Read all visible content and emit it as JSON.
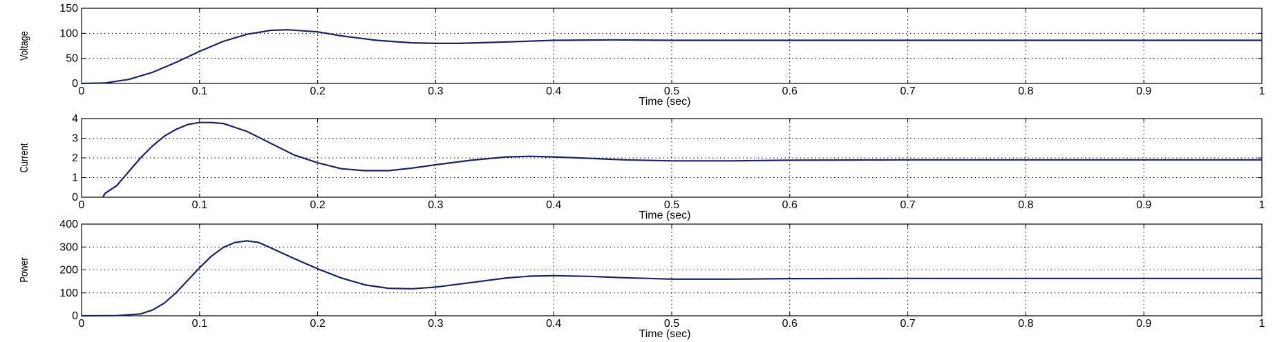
{
  "chart_data": [
    {
      "type": "line",
      "title": "",
      "xlabel": "Time (sec)",
      "ylabel": "Voltage",
      "xlim": [
        0,
        1
      ],
      "ylim": [
        0,
        150
      ],
      "xticks": [
        "0",
        "0.1",
        "0.2",
        "0.3",
        "0.4",
        "0.5",
        "0.6",
        "0.7",
        "0.8",
        "0.9",
        "1"
      ],
      "yticks": [
        "0",
        "50",
        "100",
        "150"
      ],
      "grid": true,
      "series": [
        {
          "color": "#1a1f6e",
          "x": [
            0,
            0.02,
            0.04,
            0.06,
            0.08,
            0.1,
            0.12,
            0.14,
            0.16,
            0.175,
            0.2,
            0.22,
            0.25,
            0.28,
            0.3,
            0.32,
            0.35,
            0.4,
            0.45,
            0.5,
            0.6,
            0.7,
            0.8,
            0.9,
            1.0
          ],
          "y": [
            0,
            1,
            8,
            22,
            42,
            64,
            84,
            98,
            106,
            107,
            103,
            95,
            86,
            81,
            80,
            80,
            82,
            86,
            87,
            86,
            86,
            86,
            86,
            86,
            86
          ]
        }
      ]
    },
    {
      "type": "line",
      "title": "",
      "xlabel": "Time (sec)",
      "ylabel": "Current",
      "xlim": [
        0,
        1
      ],
      "ylim": [
        0,
        4
      ],
      "xticks": [
        "0",
        "0.1",
        "0.2",
        "0.3",
        "0.4",
        "0.5",
        "0.6",
        "0.7",
        "0.8",
        "0.9",
        "1"
      ],
      "yticks": [
        "0",
        "1",
        "2",
        "3",
        "4"
      ],
      "grid": true,
      "series": [
        {
          "color": "#1a1f6e",
          "x": [
            0.018,
            0.02,
            0.03,
            0.04,
            0.05,
            0.06,
            0.07,
            0.08,
            0.09,
            0.1,
            0.11,
            0.12,
            0.14,
            0.16,
            0.18,
            0.2,
            0.22,
            0.24,
            0.26,
            0.28,
            0.3,
            0.33,
            0.36,
            0.38,
            0.4,
            0.43,
            0.46,
            0.5,
            0.55,
            0.6,
            0.7,
            0.8,
            0.9,
            1.0
          ],
          "y": [
            0,
            0.2,
            0.6,
            1.3,
            2.0,
            2.6,
            3.1,
            3.45,
            3.7,
            3.8,
            3.8,
            3.75,
            3.35,
            2.75,
            2.15,
            1.75,
            1.45,
            1.35,
            1.35,
            1.48,
            1.65,
            1.88,
            2.05,
            2.08,
            2.05,
            1.98,
            1.9,
            1.85,
            1.85,
            1.88,
            1.9,
            1.9,
            1.9,
            1.9
          ]
        }
      ]
    },
    {
      "type": "line",
      "title": "",
      "xlabel": "Time (sec)",
      "ylabel": "Power",
      "xlim": [
        0,
        1
      ],
      "ylim": [
        0,
        400
      ],
      "xticks": [
        "0",
        "0.1",
        "0.2",
        "0.3",
        "0.4",
        "0.5",
        "0.6",
        "0.7",
        "0.8",
        "0.9",
        "1"
      ],
      "yticks": [
        "0",
        "100",
        "200",
        "300",
        "400"
      ],
      "grid": true,
      "series": [
        {
          "color": "#1a1f6e",
          "x": [
            0,
            0.03,
            0.05,
            0.06,
            0.07,
            0.08,
            0.09,
            0.1,
            0.11,
            0.12,
            0.13,
            0.14,
            0.15,
            0.16,
            0.18,
            0.2,
            0.22,
            0.24,
            0.26,
            0.28,
            0.3,
            0.33,
            0.36,
            0.38,
            0.4,
            0.43,
            0.46,
            0.5,
            0.55,
            0.6,
            0.7,
            0.8,
            0.9,
            1.0
          ],
          "y": [
            0,
            1,
            8,
            25,
            55,
            100,
            155,
            210,
            260,
            298,
            320,
            327,
            320,
            297,
            250,
            205,
            165,
            135,
            120,
            118,
            125,
            145,
            165,
            173,
            175,
            172,
            166,
            160,
            160,
            162,
            163,
            163,
            163,
            163
          ]
        }
      ]
    }
  ]
}
